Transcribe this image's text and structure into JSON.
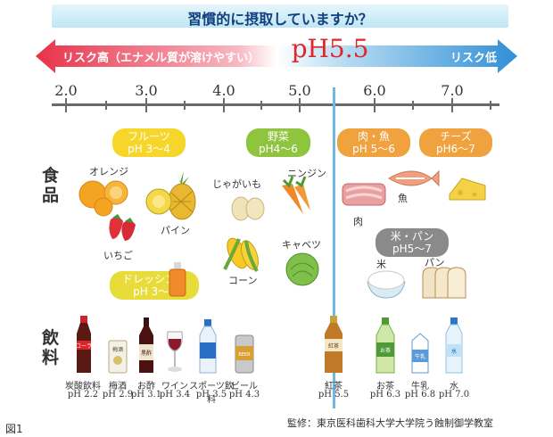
{
  "title": "習慣的に摂取していますか？",
  "risk": {
    "high": "リスク高（エナメル質が溶けやすい）",
    "low": "リスク低",
    "critical_ph": "pH5.5"
  },
  "axis": {
    "ticks": [
      "2.0",
      "3.0",
      "4.0",
      "5.0",
      "6.0",
      "7.0"
    ]
  },
  "side_labels": {
    "food": "食品",
    "drink": "飲料"
  },
  "groups": {
    "fruits": {
      "line1": "フルーツ",
      "line2": "pH 3〜4"
    },
    "vegetables": {
      "line1": "野菜",
      "line2": "pH4〜6"
    },
    "meat_fish": {
      "line1": "肉・魚",
      "line2": "pH 5〜6"
    },
    "cheese": {
      "line1": "チーズ",
      "line2": "pH6〜7"
    },
    "rice_bread": {
      "line1": "米・パン",
      "line2": "pH5〜7"
    },
    "dressing": {
      "line1": "ドレッシング",
      "line2": "pH 3〜4"
    }
  },
  "foods": {
    "orange": "オレンジ",
    "strawberry": "いちご",
    "pineapple": "パイン",
    "potato": "じゃがいも",
    "carrot": "ニンジン",
    "corn": "コーン",
    "cabbage": "キャベツ",
    "meat": "肉",
    "fish": "魚",
    "rice": "米",
    "bread": "パン"
  },
  "beverages": [
    {
      "name": "炭酸飲料",
      "ph": "pH 2.2",
      "label": "コーラ"
    },
    {
      "name": "梅酒",
      "ph": "pH 2.9",
      "label": "梅酒"
    },
    {
      "name": "お酢",
      "ph": "pH 3.1",
      "label": "黒酢"
    },
    {
      "name": "ワイン",
      "ph": "pH 3.4",
      "label": ""
    },
    {
      "name": "スポーツ飲料",
      "ph": "pH 3.5",
      "label": ""
    },
    {
      "name": "ビール",
      "ph": "pH 4.3",
      "label": "BEER"
    },
    {
      "name": "紅茶",
      "ph": "pH 5.5",
      "label": "紅茶"
    },
    {
      "name": "お茶",
      "ph": "pH 6.3",
      "label": "お茶"
    },
    {
      "name": "牛乳",
      "ph": "pH 6.8",
      "label": "牛乳"
    },
    {
      "name": "水",
      "ph": "pH 7.0",
      "label": "水"
    }
  ],
  "credit": "監修：東京医科歯科大学大学院う蝕制御学教室",
  "figure_label": "図1",
  "colors": {
    "arrow_high": "#e8324a",
    "arrow_low": "#2f8fd6",
    "critical_line": "#6fb8e4",
    "title_text": "#123f7d"
  }
}
